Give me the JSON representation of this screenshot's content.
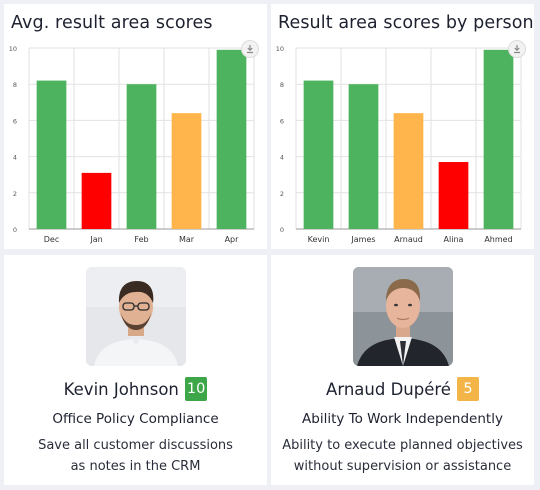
{
  "colors": {
    "green": "#4eb35e",
    "red": "#ff0000",
    "orange": "#ffb54c",
    "grid": "#e2e2e2",
    "axis": "#9a9a9a"
  },
  "cards": {
    "avg": {
      "title": "Avg. result area scores"
    },
    "person": {
      "title": "Result area scores by person"
    }
  },
  "chart_data": [
    {
      "type": "bar",
      "title": "Avg. result area scores",
      "categories": [
        "Dec",
        "Jan",
        "Feb",
        "Mar",
        "Apr"
      ],
      "values": [
        8.2,
        3.1,
        8.0,
        6.4,
        9.9
      ],
      "colors": [
        "green",
        "red",
        "green",
        "orange",
        "green"
      ],
      "ylim": [
        0,
        10
      ],
      "yticks": [
        "0",
        "2",
        "4",
        "6",
        "8",
        "10"
      ],
      "grid": true,
      "xlabel": "",
      "ylabel": ""
    },
    {
      "type": "bar",
      "title": "Result area scores by person",
      "categories": [
        "Kevin",
        "James",
        "Arnaud",
        "Alina",
        "Ahmed"
      ],
      "values": [
        8.2,
        8.0,
        6.4,
        3.7,
        9.9
      ],
      "colors": [
        "green",
        "green",
        "orange",
        "red",
        "green"
      ],
      "ylim": [
        0,
        10
      ],
      "yticks": [
        "0",
        "2",
        "4",
        "6",
        "8",
        "10"
      ],
      "grid": true,
      "xlabel": "",
      "ylabel": ""
    }
  ],
  "people": [
    {
      "name": "Kevin Johnson",
      "score": "10",
      "score_color": "#3da648",
      "result_area": "Office Policy Compliance",
      "description_lines": [
        "Save all customer discussions",
        "as notes in the CRM"
      ],
      "avatar_icon": "avatar-photo"
    },
    {
      "name": "Arnaud Dupéré",
      "score": "5",
      "score_color": "#f3b547",
      "result_area": "Ability To Work Independently",
      "description_lines": [
        "Ability to execute planned objectives",
        "without supervision or assistance"
      ],
      "avatar_icon": "avatar-photo"
    }
  ]
}
